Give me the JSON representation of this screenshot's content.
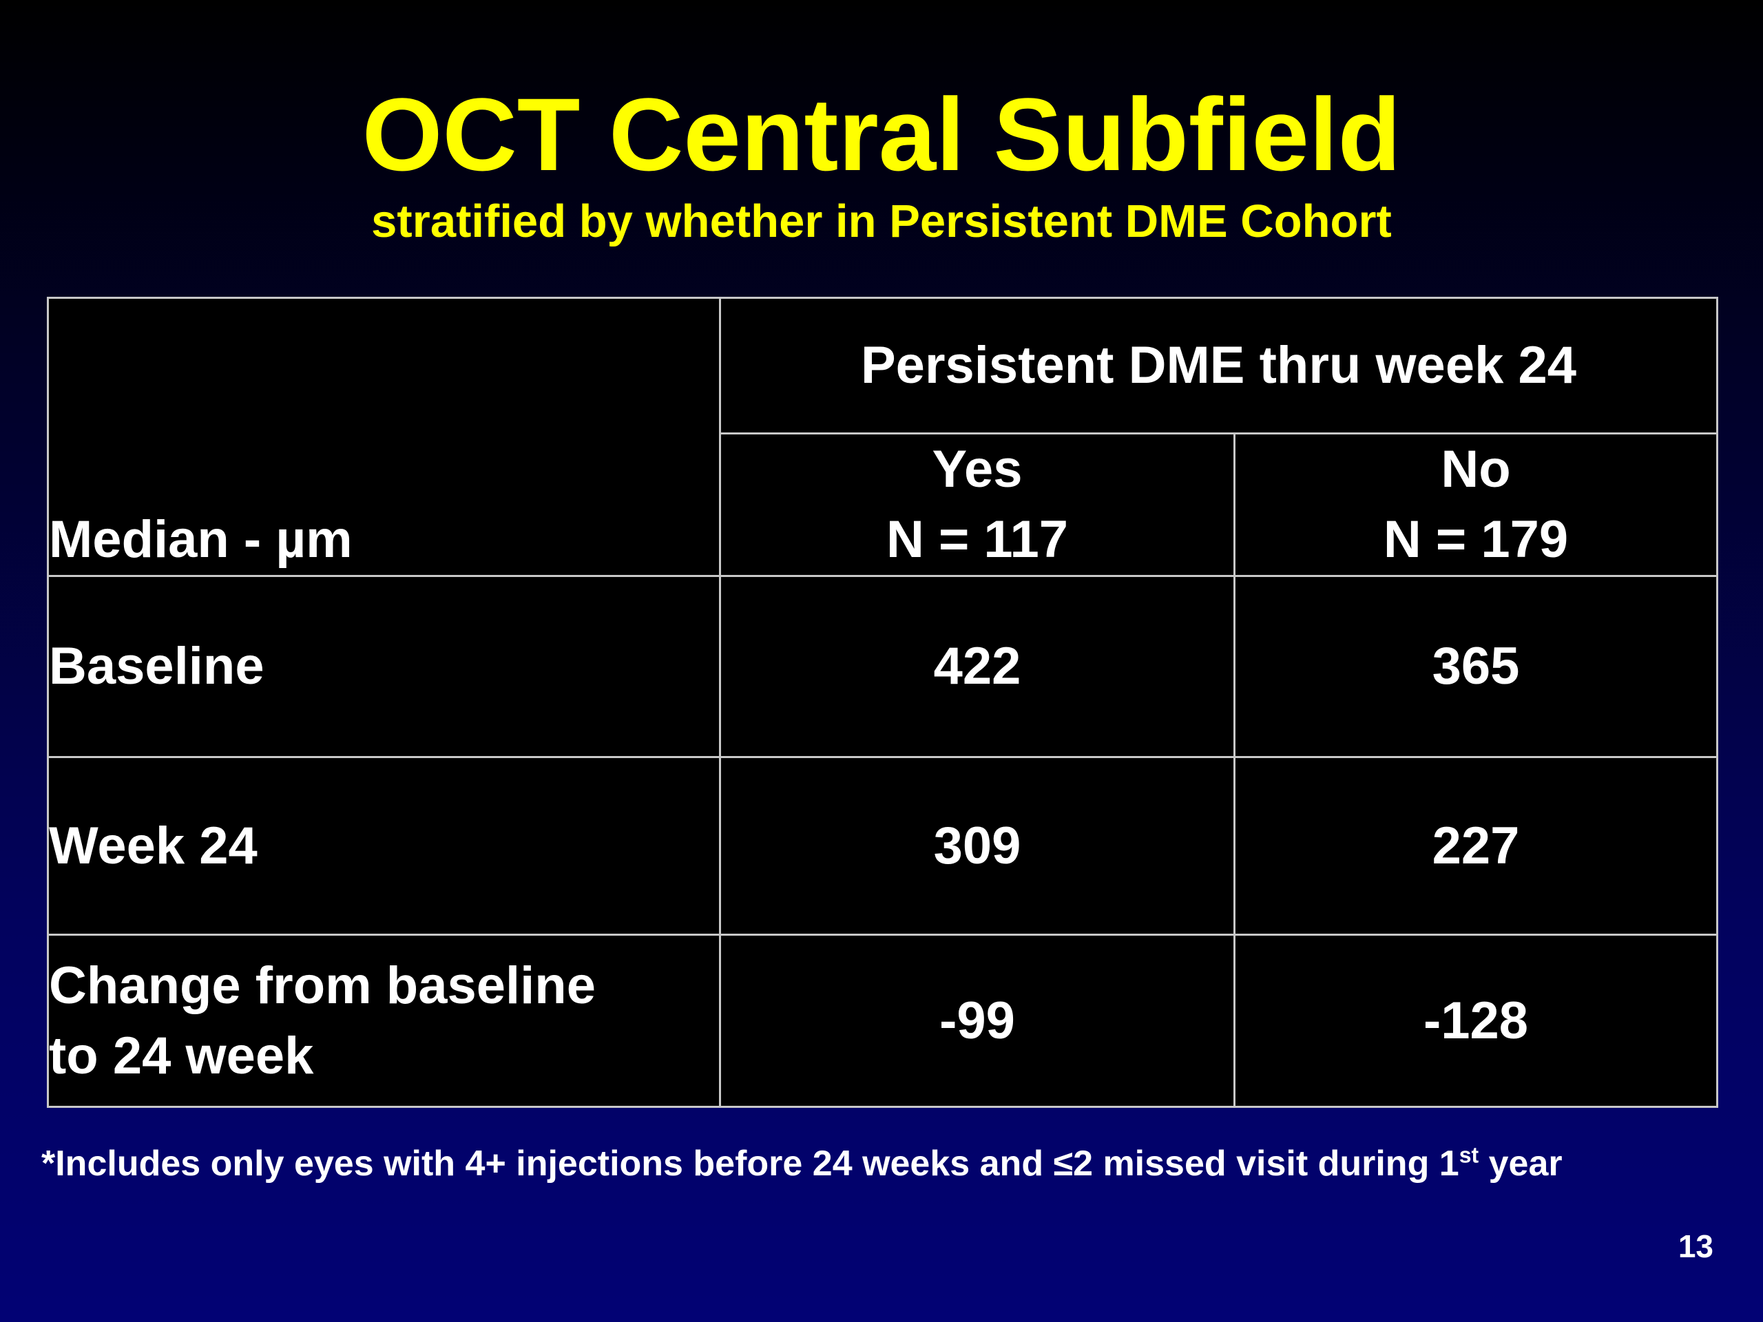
{
  "slide": {
    "title": "OCT Central Subfield",
    "subtitle": "stratified by whether in Persistent DME Cohort",
    "page_number": "13",
    "colors": {
      "title": "#ffff00",
      "text": "#ffffff",
      "table_background": "#000000",
      "table_border": "#c8c8c8",
      "background_top": "#000000",
      "background_bottom": "#020274"
    }
  },
  "table": {
    "stub_header": "Median - µm",
    "group_header": "Persistent DME thru week 24",
    "columns": [
      {
        "label": "Yes",
        "n": "N = 117"
      },
      {
        "label": "No",
        "n": "N = 179"
      }
    ],
    "rows": [
      {
        "label": "Baseline",
        "values": [
          "422",
          "365"
        ]
      },
      {
        "label": "Week 24",
        "values": [
          "309",
          "227"
        ]
      },
      {
        "label_line1": "Change from baseline",
        "label_line2": "to 24 week",
        "values": [
          "-99",
          "-128"
        ]
      }
    ]
  },
  "footnote": {
    "text_before": "*Includes only eyes with 4+ injections before 24 weeks and ≤2 missed visit during 1",
    "superscript": "st",
    "text_after": " year"
  }
}
